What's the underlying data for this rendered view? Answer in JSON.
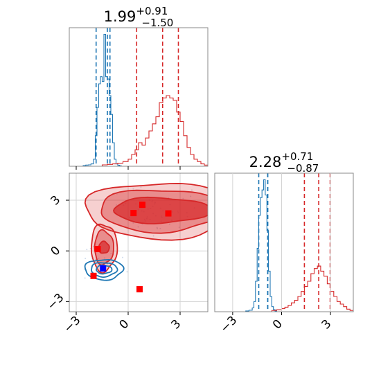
{
  "colors": {
    "red": "#d62728",
    "blue": "#1f77b4",
    "grid": "#d3d3d3",
    "marker_red": "#ff0000",
    "marker_blue": "#0000ff"
  },
  "chart_data": [
    {
      "type": "histogram",
      "panel": "top-left marginal",
      "title": {
        "median": "1.99",
        "plus": "+0.91",
        "minus": "−1.50"
      },
      "xlim": [
        -3.4,
        4.6
      ],
      "series": [
        {
          "name": "",
          "color": "#1f77b4",
          "quantiles": [
            -1.85,
            -1.2,
            -1.05
          ],
          "bin_edges": [
            -2.6,
            -2.45,
            -2.3,
            -2.15,
            -2.0,
            -1.9,
            -1.8,
            -1.7,
            -1.6,
            -1.5,
            -1.4,
            -1.3,
            -1.2,
            -1.1,
            -1.0,
            -0.9,
            -0.8,
            -0.7,
            -0.6,
            -0.5,
            -0.4
          ],
          "counts": [
            0.3,
            0.5,
            0.6,
            1.0,
            3.0,
            13.0,
            25.0,
            35.0,
            38.0,
            36.0,
            56.0,
            38.0,
            37.0,
            30.0,
            22.0,
            10.0,
            3.0,
            1.0,
            0.4,
            0.2
          ]
        },
        {
          "name": "",
          "color": "#d62728",
          "quantiles": [
            0.49,
            1.99,
            2.9
          ],
          "bin_edges": [
            -1.5,
            -1.2,
            -0.9,
            -0.6,
            -0.3,
            0.0,
            0.2,
            0.4,
            0.6,
            0.8,
            1.0,
            1.2,
            1.4,
            1.6,
            1.8,
            2.0,
            2.2,
            2.4,
            2.6,
            2.8,
            3.0,
            3.2,
            3.4,
            3.6,
            3.8,
            4.0,
            4.2,
            4.4,
            4.6
          ],
          "counts": [
            0.6,
            0.8,
            1.0,
            1.3,
            2.0,
            3.0,
            5.0,
            7.0,
            10.0,
            9.0,
            12.0,
            15.0,
            18.0,
            21.0,
            27.0,
            29.0,
            30.0,
            29.0,
            28.0,
            23.0,
            19.0,
            13.0,
            8.0,
            5.0,
            3.0,
            2.0,
            1.0,
            0.5
          ]
        }
      ]
    },
    {
      "type": "contour",
      "panel": "bottom-left 2D",
      "xlim": [
        -3.4,
        4.6
      ],
      "ylim": [
        -3.6,
        4.6
      ],
      "x_ticks": [
        "−3",
        "0",
        "3"
      ],
      "y_ticks": [
        "−3",
        "0",
        "3"
      ],
      "grid": true,
      "series": [
        {
          "name": "",
          "color": "#d62728",
          "fill": true,
          "modes": [
            {
              "center": [
                1.9,
                2.4
              ],
              "levels": [
                [
                  2.8,
                  0.75
                ],
                [
                  3.6,
                  1.25
                ],
                [
                  4.4,
                  1.65
                ]
              ]
            },
            {
              "center": [
                -1.4,
                0.2
              ],
              "levels": [
                [
                  0.3,
                  0.35
                ],
                [
                  0.55,
                  1.0
                ],
                [
                  0.75,
                  1.4
                ]
              ]
            }
          ]
        },
        {
          "name": "",
          "color": "#1f77b4",
          "fill": false,
          "modes": [
            {
              "center": [
                -1.4,
                -1.1
              ],
              "levels": [
                [
                  0.45,
                  0.25
                ],
                [
                  0.75,
                  0.42
                ],
                [
                  1.1,
                  0.6
                ]
              ]
            }
          ]
        }
      ],
      "markers": [
        {
          "x": 0.31,
          "y": 2.24,
          "color": "#ff0000"
        },
        {
          "x": 0.82,
          "y": 2.73,
          "color": "#ff0000"
        },
        {
          "x": 2.32,
          "y": 2.22,
          "color": "#ff0000"
        },
        {
          "x": -1.76,
          "y": 0.11,
          "color": "#ff0000"
        },
        {
          "x": -2.0,
          "y": -1.48,
          "color": "#ff0000"
        },
        {
          "x": 0.66,
          "y": -2.27,
          "color": "#ff0000"
        },
        {
          "x": -1.45,
          "y": -1.04,
          "color": "#0000ff"
        }
      ]
    },
    {
      "type": "histogram",
      "panel": "bottom-right marginal",
      "title": {
        "median": "2.28",
        "plus": "+0.71",
        "minus": "−0.87"
      },
      "xlim": [
        -4.1,
        4.4
      ],
      "x_ticks": [
        "−3",
        "0",
        "3"
      ],
      "series": [
        {
          "name": "",
          "color": "#1f77b4",
          "quantiles": [
            -1.4,
            -0.85,
            -0.85
          ],
          "bin_edges": [
            -2.2,
            -2.0,
            -1.8,
            -1.7,
            -1.6,
            -1.5,
            -1.4,
            -1.3,
            -1.2,
            -1.1,
            -1.0,
            -0.9,
            -0.8,
            -0.7,
            -0.6,
            -0.5,
            -0.4,
            -0.3
          ],
          "counts": [
            0.3,
            0.6,
            1.5,
            4.0,
            12.0,
            25.0,
            38.0,
            45.0,
            48.0,
            52.0,
            46.0,
            32.0,
            16.0,
            6.0,
            2.0,
            0.8,
            0.3
          ]
        },
        {
          "name": "",
          "color": "#d62728",
          "quantiles": [
            1.4,
            2.28,
            2.98
          ],
          "bin_edges": [
            -0.6,
            -0.3,
            0.0,
            0.2,
            0.4,
            0.6,
            0.8,
            1.0,
            1.2,
            1.4,
            1.6,
            1.8,
            2.0,
            2.2,
            2.4,
            2.6,
            2.8,
            3.0,
            3.2,
            3.4,
            3.6,
            3.8,
            4.0,
            4.2,
            4.4
          ],
          "counts": [
            0.5,
            0.8,
            1.2,
            1.8,
            2.5,
            3.5,
            4.5,
            6.0,
            8.0,
            10.0,
            12.0,
            15.0,
            17.0,
            18.0,
            16.0,
            14.0,
            11.0,
            8.0,
            6.0,
            4.0,
            3.0,
            2.0,
            1.0,
            0.5
          ]
        }
      ]
    }
  ]
}
